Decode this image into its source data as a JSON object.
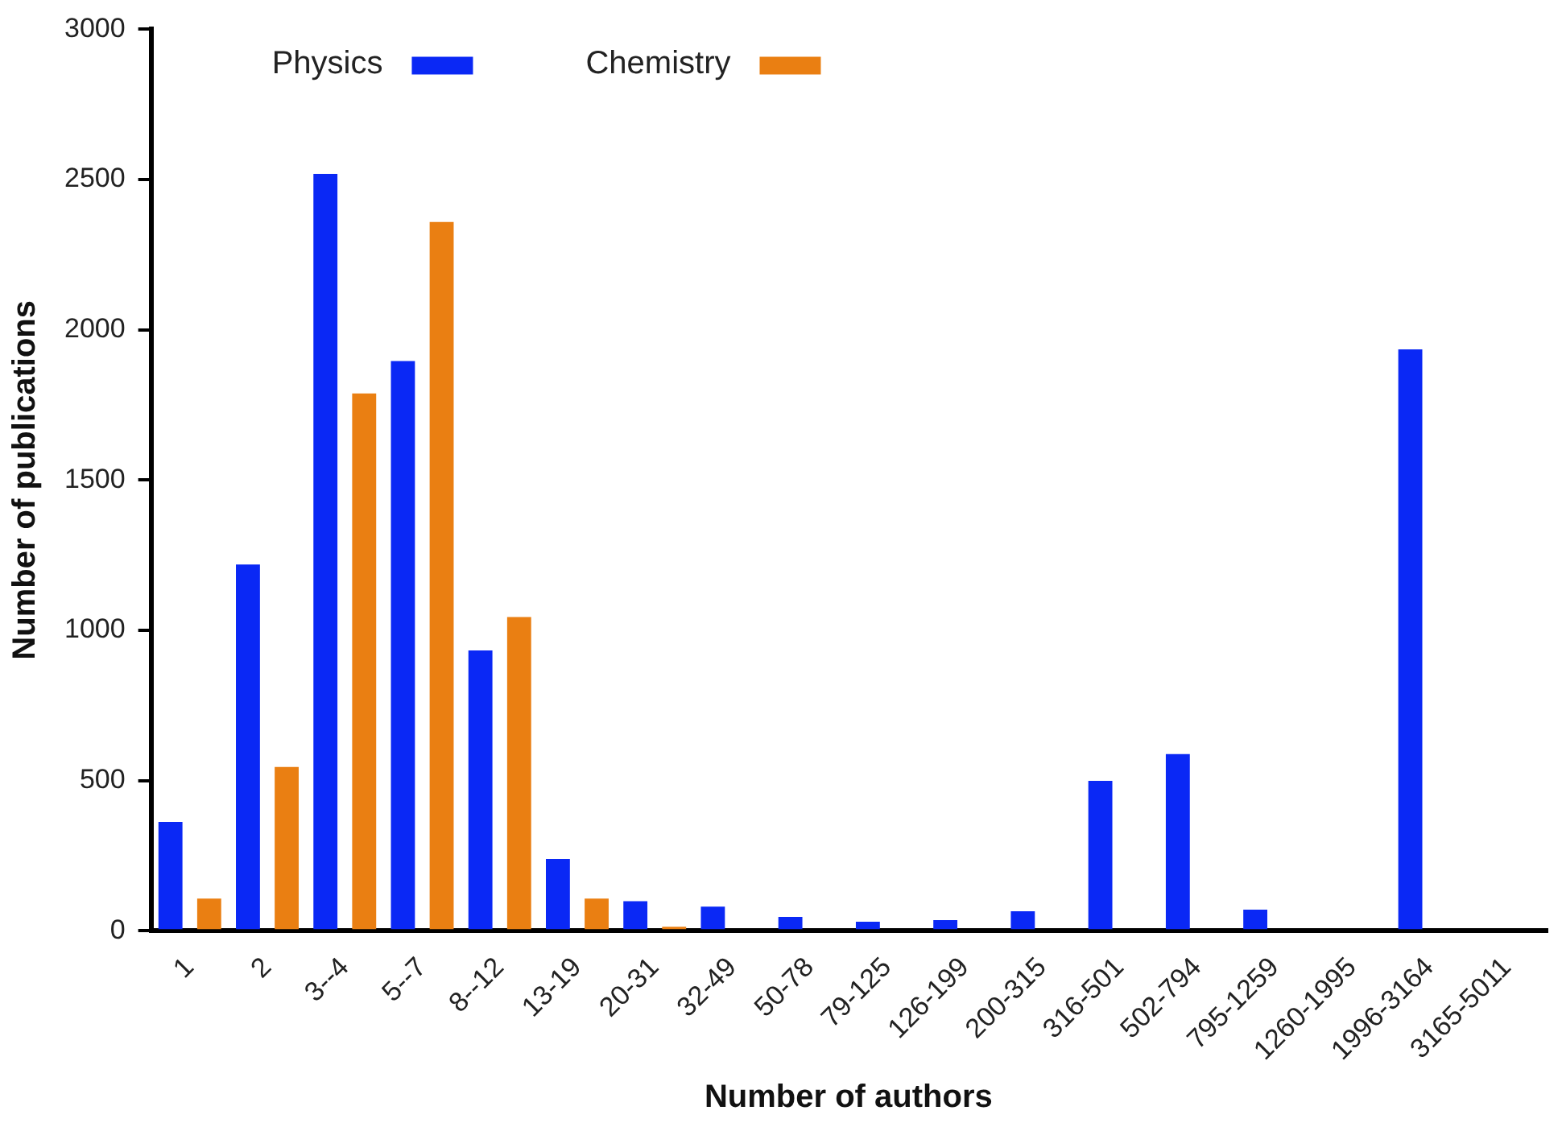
{
  "chart_data": {
    "type": "bar",
    "xlabel": "Number of authors",
    "ylabel": "Number of publications",
    "categories": [
      "1",
      "2",
      "3--4",
      "5--7",
      "8--12",
      "13-19",
      "20-31",
      "32-49",
      "50-78",
      "79-125",
      "126-199",
      "200-315",
      "316-501",
      "502-794",
      "795-1259",
      "1260-1995",
      "1996-3164",
      "3165-5011"
    ],
    "series": [
      {
        "name": "Physics",
        "color": "#0a28f5",
        "values": [
          362,
          1219,
          2519,
          1896,
          933,
          239,
          98,
          80,
          46,
          30,
          35,
          65,
          499,
          588,
          70,
          0,
          1935,
          0
        ]
      },
      {
        "name": "Chemistry",
        "color": "#ea7f12",
        "values": [
          107,
          545,
          1788,
          2359,
          1044,
          107,
          13,
          0,
          0,
          0,
          0,
          0,
          0,
          0,
          0,
          0,
          0,
          0
        ]
      }
    ],
    "ylim": [
      0,
      3000
    ],
    "yticks": [
      0,
      500,
      1000,
      1500,
      2000,
      2500,
      3000
    ],
    "grid": false,
    "legend": "top"
  }
}
